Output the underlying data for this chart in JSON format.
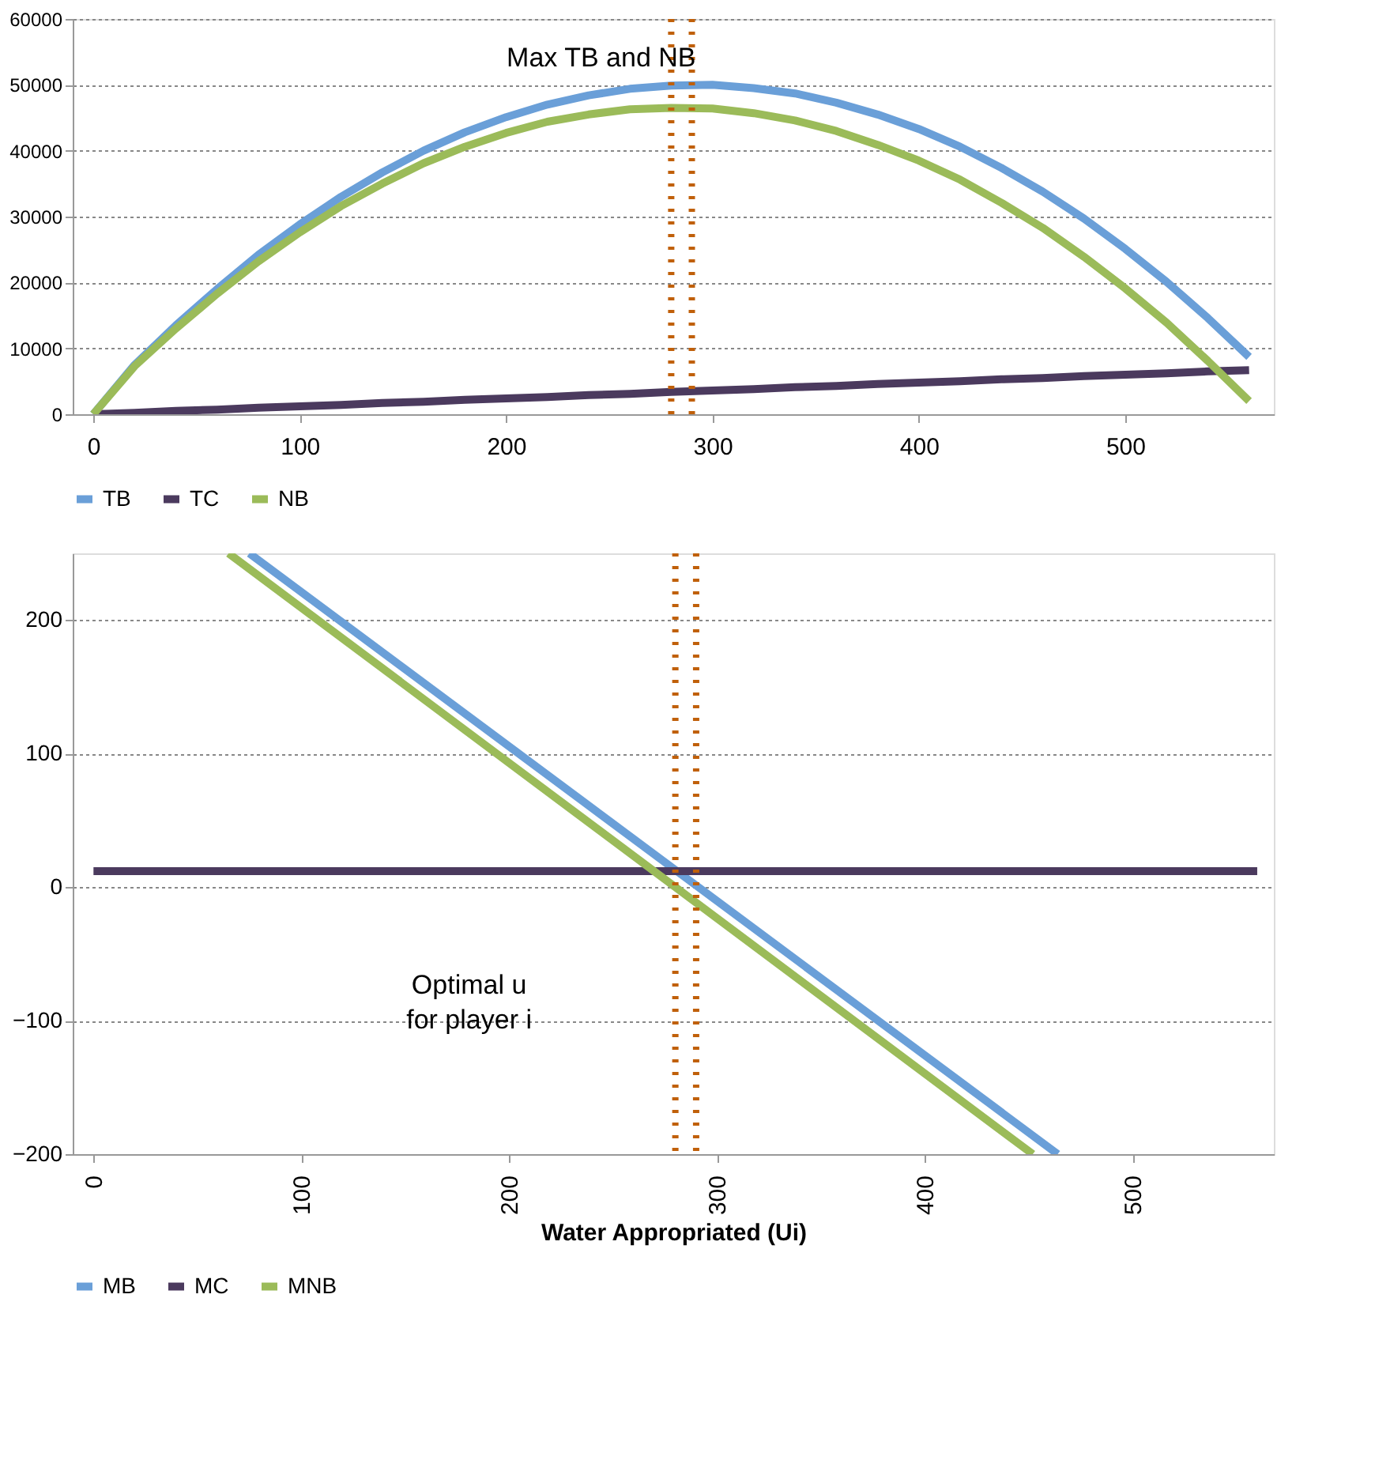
{
  "chart_data": [
    {
      "type": "line",
      "x": [
        0,
        20,
        40,
        60,
        80,
        100,
        120,
        140,
        160,
        180,
        200,
        220,
        240,
        260,
        280,
        300,
        320,
        340,
        360,
        380,
        400,
        420,
        440,
        460,
        480,
        500,
        520,
        540,
        560
      ],
      "series": [
        {
          "name": "TB",
          "color": "#6a9fd8",
          "values": [
            0,
            7500,
            13500,
            19000,
            24200,
            28800,
            33000,
            36700,
            40000,
            42800,
            45100,
            47000,
            48400,
            49400,
            49900,
            50000,
            49500,
            48700,
            47300,
            45500,
            43300,
            40600,
            37400,
            33800,
            29700,
            25100,
            20100,
            14600,
            8700
          ]
        },
        {
          "name": "TC",
          "color": "#4b3a5e",
          "values": [
            0,
            200,
            500,
            700,
            1000,
            1200,
            1400,
            1700,
            1900,
            2200,
            2400,
            2600,
            2900,
            3100,
            3400,
            3600,
            3800,
            4100,
            4300,
            4600,
            4800,
            5000,
            5300,
            5500,
            5800,
            6000,
            6200,
            6500,
            6700
          ]
        },
        {
          "name": "NB",
          "color": "#9bbb59",
          "values": [
            0,
            7300,
            13000,
            18300,
            23200,
            27600,
            31600,
            35000,
            38100,
            40600,
            42700,
            44400,
            45500,
            46300,
            46500,
            46400,
            45700,
            44600,
            43000,
            40900,
            38500,
            35600,
            32100,
            28300,
            23900,
            19100,
            13900,
            8100,
            2000
          ]
        }
      ],
      "xlim": [
        -10,
        572
      ],
      "xticks": [
        0,
        100,
        200,
        300,
        400,
        500
      ],
      "ylim": [
        0,
        60000
      ],
      "yticks": [
        0,
        10000,
        20000,
        30000,
        40000,
        50000,
        60000
      ],
      "grid": "y",
      "legend": "bottom",
      "marker": "none",
      "line_style": "solid",
      "ref_lines": [
        {
          "axis": "x",
          "value": 280,
          "color": "#c0600a",
          "line_style": "dotted"
        },
        {
          "axis": "x",
          "value": 290,
          "color": "#c0600a",
          "line_style": "dotted"
        }
      ],
      "annotations": [
        "Max TB and NB"
      ]
    },
    {
      "type": "line",
      "xlabel": "Water Appropriated (Ui)",
      "series": [
        {
          "name": "MB",
          "color": "#6a9fd8",
          "x": [
            75,
            464
          ],
          "values": [
            250,
            -200
          ]
        },
        {
          "name": "MC",
          "color": "#4b3a5e",
          "x": [
            0,
            560
          ],
          "values": [
            12,
            12
          ]
        },
        {
          "name": "MNB",
          "color": "#9bbb59",
          "x": [
            65,
            452
          ],
          "values": [
            250,
            -200
          ]
        }
      ],
      "xlim": [
        -10,
        568
      ],
      "xticks": [
        0,
        100,
        200,
        300,
        400,
        500
      ],
      "ylim": [
        -200,
        250
      ],
      "yticks": [
        -200,
        -100,
        0,
        100,
        200
      ],
      "grid": "y",
      "legend": "bottom",
      "marker": "none",
      "line_style": "solid",
      "ref_lines": [
        {
          "axis": "x",
          "value": 280,
          "color": "#c0600a",
          "line_style": "dotted"
        },
        {
          "axis": "x",
          "value": 290,
          "color": "#c0600a",
          "line_style": "dotted"
        }
      ],
      "annotations": [
        "Optimal u for player i"
      ]
    }
  ]
}
